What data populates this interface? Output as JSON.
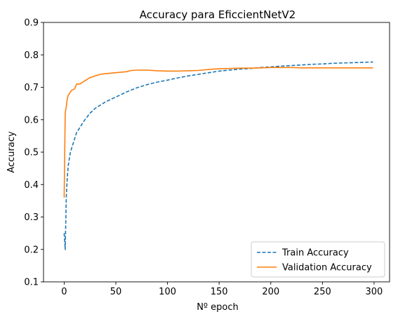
{
  "chart_data": {
    "type": "line",
    "title": "Accuracy para EficcientNetV2",
    "xlabel": "Nº epoch",
    "ylabel": "Accuracy",
    "xlim": [
      -20,
      315
    ],
    "ylim": [
      0.1,
      0.9
    ],
    "xticks": [
      0,
      50,
      100,
      150,
      200,
      250,
      300
    ],
    "yticks": [
      0.1,
      0.2,
      0.3,
      0.4,
      0.5,
      0.6,
      0.7,
      0.8,
      0.9
    ],
    "xtick_labels": [
      "0",
      "50",
      "100",
      "150",
      "200",
      "250",
      "300"
    ],
    "ytick_labels": [
      "0.1",
      "0.2",
      "0.3",
      "0.4",
      "0.5",
      "0.6",
      "0.7",
      "0.8",
      "0.9"
    ],
    "legend": {
      "placement": "lower-right"
    },
    "series": [
      {
        "name": "Train Accuracy",
        "color": "#1f77b4",
        "style": "dashed",
        "x": [
          0,
          1,
          2,
          3,
          4,
          5,
          6,
          8,
          10,
          12,
          15,
          18,
          20,
          25,
          30,
          35,
          40,
          50,
          60,
          70,
          80,
          90,
          100,
          110,
          120,
          130,
          140,
          150,
          160,
          170,
          180,
          190,
          200,
          210,
          220,
          230,
          240,
          250,
          260,
          270,
          280,
          290,
          299
        ],
        "y": [
          0.25,
          0.2,
          0.36,
          0.42,
          0.46,
          0.48,
          0.5,
          0.52,
          0.54,
          0.56,
          0.575,
          0.59,
          0.6,
          0.62,
          0.635,
          0.645,
          0.655,
          0.67,
          0.685,
          0.698,
          0.708,
          0.716,
          0.722,
          0.729,
          0.735,
          0.74,
          0.745,
          0.75,
          0.753,
          0.756,
          0.758,
          0.761,
          0.763,
          0.765,
          0.767,
          0.769,
          0.771,
          0.772,
          0.774,
          0.775,
          0.776,
          0.777,
          0.778
        ]
      },
      {
        "name": "Validation Accuracy",
        "color": "#ff7f0e",
        "style": "solid",
        "x": [
          0,
          1,
          2,
          3,
          4,
          5,
          7,
          10,
          12,
          15,
          20,
          25,
          30,
          35,
          40,
          50,
          60,
          65,
          70,
          80,
          90,
          100,
          110,
          120,
          130,
          140,
          150,
          160,
          170,
          180,
          190,
          200,
          210,
          220,
          230,
          240,
          250,
          260,
          270,
          280,
          290,
          299
        ],
        "y": [
          0.36,
          0.62,
          0.64,
          0.665,
          0.675,
          0.68,
          0.69,
          0.695,
          0.71,
          0.71,
          0.72,
          0.73,
          0.735,
          0.74,
          0.742,
          0.745,
          0.748,
          0.752,
          0.753,
          0.753,
          0.751,
          0.75,
          0.75,
          0.751,
          0.752,
          0.755,
          0.757,
          0.758,
          0.759,
          0.759,
          0.76,
          0.761,
          0.761,
          0.761,
          0.76,
          0.76,
          0.76,
          0.76,
          0.76,
          0.76,
          0.76,
          0.76
        ]
      }
    ]
  }
}
